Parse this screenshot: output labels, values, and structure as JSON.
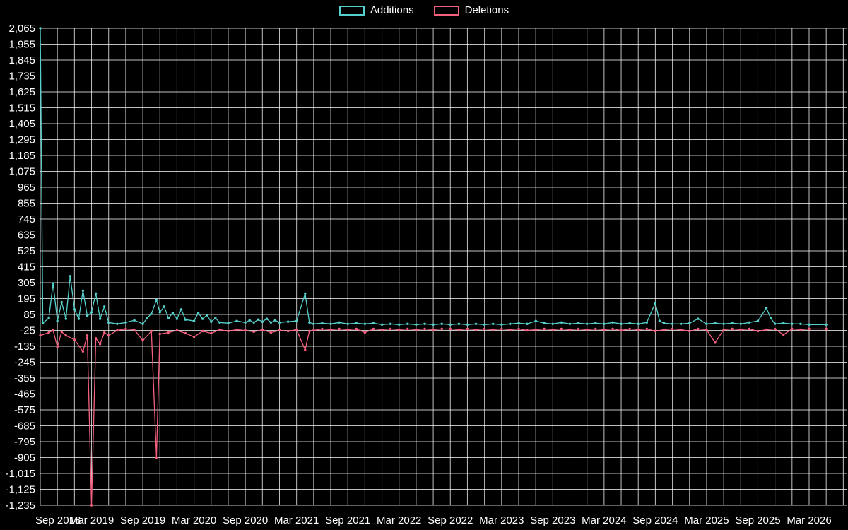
{
  "legend": {
    "items": [
      {
        "label": "Additions",
        "color": "#56d0cb"
      },
      {
        "label": "Deletions",
        "color": "#f6607f"
      }
    ]
  },
  "chart_data": {
    "type": "line",
    "title": "Additions and Deletions over time",
    "background": "#000000",
    "gridline_color": "#ffffff",
    "text_color": "#ffffff",
    "legend_position": "top-center",
    "grid": true,
    "y_axis": {
      "min": -1235,
      "max": 2065,
      "step": 110,
      "tick_labels": [
        "2,065",
        "1,955",
        "1,845",
        "1,735",
        "1,625",
        "1,515",
        "1,405",
        "1,295",
        "1,185",
        "1,075",
        "965",
        "855",
        "745",
        "635",
        "525",
        "415",
        "305",
        "195",
        "85",
        "-25",
        "-135",
        "-245",
        "-355",
        "-465",
        "-575",
        "-685",
        "-795",
        "-905",
        "-1,015",
        "-1,125",
        "-1,235"
      ]
    },
    "x_axis": {
      "tick_labels": [
        "Sep 2018",
        "Mar 2019",
        "Sep 2019",
        "Mar 2020",
        "Sep 2020",
        "Mar 2021",
        "Sep 2021",
        "Mar 2022",
        "Sep 2022",
        "Mar 2023",
        "Sep 2023",
        "Mar 2024",
        "Sep 2024",
        "Mar 2025",
        "Sep 2025",
        "Mar 2026"
      ],
      "months_per_tick": 6,
      "gridline_every_months": 2,
      "total_gridline_months": 94
    },
    "series": [
      {
        "name": "Additions",
        "color": "#56d0cb",
        "points": [
          [
            0,
            2065
          ],
          [
            0.3,
            25
          ],
          [
            1,
            60
          ],
          [
            1.5,
            300
          ],
          [
            2,
            40
          ],
          [
            2.5,
            170
          ],
          [
            3,
            55
          ],
          [
            3.5,
            350
          ],
          [
            4,
            120
          ],
          [
            4.5,
            55
          ],
          [
            5,
            250
          ],
          [
            5.5,
            75
          ],
          [
            6,
            100
          ],
          [
            6.5,
            230
          ],
          [
            7,
            55
          ],
          [
            7.5,
            140
          ],
          [
            8,
            30
          ],
          [
            9,
            20
          ],
          [
            10,
            30
          ],
          [
            11,
            45
          ],
          [
            12,
            20
          ],
          [
            12.5,
            60
          ],
          [
            13,
            90
          ],
          [
            13.6,
            185
          ],
          [
            14,
            100
          ],
          [
            14.5,
            140
          ],
          [
            15,
            60
          ],
          [
            15.5,
            95
          ],
          [
            16,
            55
          ],
          [
            16.5,
            120
          ],
          [
            17,
            50
          ],
          [
            18,
            40
          ],
          [
            18.5,
            95
          ],
          [
            19,
            55
          ],
          [
            19.5,
            80
          ],
          [
            20,
            35
          ],
          [
            20.5,
            60
          ],
          [
            21,
            30
          ],
          [
            22,
            25
          ],
          [
            23,
            40
          ],
          [
            24,
            30
          ],
          [
            24.5,
            45
          ],
          [
            25,
            30
          ],
          [
            25.5,
            50
          ],
          [
            26,
            35
          ],
          [
            26.5,
            55
          ],
          [
            27,
            30
          ],
          [
            27.5,
            45
          ],
          [
            28,
            30
          ],
          [
            29,
            35
          ],
          [
            30,
            40
          ],
          [
            31,
            230
          ],
          [
            31.5,
            30
          ],
          [
            32,
            20
          ],
          [
            33,
            25
          ],
          [
            34,
            20
          ],
          [
            35,
            30
          ],
          [
            36,
            20
          ],
          [
            37,
            25
          ],
          [
            38,
            20
          ],
          [
            39,
            25
          ],
          [
            40,
            15
          ],
          [
            41,
            20
          ],
          [
            42,
            15
          ],
          [
            43,
            20
          ],
          [
            44,
            15
          ],
          [
            45,
            20
          ],
          [
            46,
            15
          ],
          [
            47,
            20
          ],
          [
            48,
            15
          ],
          [
            49,
            20
          ],
          [
            50,
            15
          ],
          [
            51,
            20
          ],
          [
            52,
            15
          ],
          [
            53,
            20
          ],
          [
            54,
            15
          ],
          [
            55,
            20
          ],
          [
            56,
            25
          ],
          [
            57,
            20
          ],
          [
            58,
            40
          ],
          [
            59,
            25
          ],
          [
            60,
            20
          ],
          [
            61,
            30
          ],
          [
            62,
            20
          ],
          [
            63,
            25
          ],
          [
            64,
            20
          ],
          [
            65,
            25
          ],
          [
            66,
            20
          ],
          [
            67,
            30
          ],
          [
            68,
            20
          ],
          [
            69,
            25
          ],
          [
            70,
            20
          ],
          [
            71,
            30
          ],
          [
            72,
            165
          ],
          [
            72.5,
            40
          ],
          [
            73,
            25
          ],
          [
            74,
            20
          ],
          [
            75,
            20
          ],
          [
            76,
            25
          ],
          [
            77,
            55
          ],
          [
            78,
            20
          ],
          [
            79,
            25
          ],
          [
            80,
            20
          ],
          [
            81,
            25
          ],
          [
            82,
            20
          ],
          [
            83,
            30
          ],
          [
            84,
            40
          ],
          [
            85,
            130
          ],
          [
            85.5,
            60
          ],
          [
            86,
            20
          ],
          [
            87,
            25
          ],
          [
            88,
            20
          ],
          [
            89,
            20
          ],
          [
            90,
            15
          ],
          [
            92,
            15
          ]
        ]
      },
      {
        "name": "Deletions",
        "color": "#f6607f",
        "points": [
          [
            0,
            -60
          ],
          [
            1,
            -40
          ],
          [
            1.5,
            -25
          ],
          [
            2,
            -140
          ],
          [
            2.5,
            -35
          ],
          [
            3,
            -60
          ],
          [
            4,
            -90
          ],
          [
            5,
            -170
          ],
          [
            5.5,
            -60
          ],
          [
            6,
            -1235
          ],
          [
            6.5,
            -80
          ],
          [
            7,
            -120
          ],
          [
            7.5,
            -40
          ],
          [
            8,
            -60
          ],
          [
            9,
            -25
          ],
          [
            10,
            -15
          ],
          [
            11,
            -20
          ],
          [
            12,
            -95
          ],
          [
            13,
            -30
          ],
          [
            13.6,
            -905
          ],
          [
            14,
            -50
          ],
          [
            15,
            -40
          ],
          [
            16,
            -25
          ],
          [
            17,
            -45
          ],
          [
            18,
            -70
          ],
          [
            19,
            -30
          ],
          [
            20,
            -45
          ],
          [
            21,
            -20
          ],
          [
            22,
            -30
          ],
          [
            23,
            -20
          ],
          [
            24,
            -25
          ],
          [
            25,
            -35
          ],
          [
            26,
            -20
          ],
          [
            27,
            -40
          ],
          [
            28,
            -25
          ],
          [
            29,
            -30
          ],
          [
            30,
            -20
          ],
          [
            31,
            -160
          ],
          [
            31.5,
            -30
          ],
          [
            32,
            -25
          ],
          [
            33,
            -15
          ],
          [
            34,
            -20
          ],
          [
            35,
            -15
          ],
          [
            36,
            -20
          ],
          [
            37,
            -15
          ],
          [
            38,
            -40
          ],
          [
            39,
            -15
          ],
          [
            40,
            -20
          ],
          [
            41,
            -15
          ],
          [
            42,
            -20
          ],
          [
            43,
            -15
          ],
          [
            44,
            -20
          ],
          [
            45,
            -15
          ],
          [
            46,
            -20
          ],
          [
            47,
            -15
          ],
          [
            48,
            -15
          ],
          [
            49,
            -20
          ],
          [
            50,
            -15
          ],
          [
            51,
            -20
          ],
          [
            52,
            -15
          ],
          [
            53,
            -20
          ],
          [
            54,
            -15
          ],
          [
            55,
            -20
          ],
          [
            56,
            -15
          ],
          [
            57,
            -25
          ],
          [
            58,
            -20
          ],
          [
            59,
            -15
          ],
          [
            60,
            -20
          ],
          [
            61,
            -15
          ],
          [
            62,
            -20
          ],
          [
            63,
            -15
          ],
          [
            64,
            -20
          ],
          [
            65,
            -15
          ],
          [
            66,
            -20
          ],
          [
            67,
            -15
          ],
          [
            68,
            -25
          ],
          [
            69,
            -15
          ],
          [
            70,
            -20
          ],
          [
            71,
            -15
          ],
          [
            72,
            -30
          ],
          [
            73,
            -20
          ],
          [
            74,
            -15
          ],
          [
            75,
            -20
          ],
          [
            76,
            -30
          ],
          [
            77,
            -15
          ],
          [
            78,
            -20
          ],
          [
            79,
            -110
          ],
          [
            80,
            -20
          ],
          [
            81,
            -15
          ],
          [
            82,
            -20
          ],
          [
            83,
            -15
          ],
          [
            84,
            -30
          ],
          [
            85,
            -20
          ],
          [
            86,
            -15
          ],
          [
            87,
            -55
          ],
          [
            88,
            -15
          ],
          [
            89,
            -20
          ],
          [
            90,
            -15
          ],
          [
            92,
            -15
          ]
        ]
      }
    ]
  }
}
